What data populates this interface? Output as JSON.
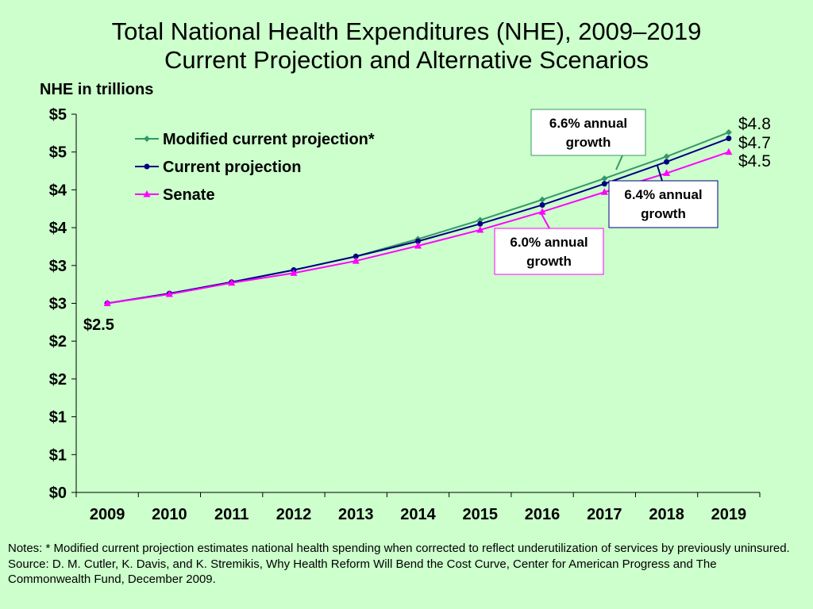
{
  "title_line1": "Total National Health Expenditures (NHE), 2009–2019",
  "title_line2": "Current Projection and Alternative Scenarios",
  "notes_line": "Notes: * Modified current projection estimates national health spending when corrected to reflect underutilization of services by previously uninsured.",
  "source_line": "Source: D. M. Cutler, K. Davis, and K. Stremikis, Why Health Reform Will Bend the Cost Curve, Center for American Progress and The Commonwealth Fund, December 2009.",
  "chart_data": {
    "type": "line",
    "ylabel": "NHE in trillions",
    "ylim": [
      0,
      5
    ],
    "yticks": [
      0,
      0.5,
      1,
      1.5,
      2,
      2.5,
      3,
      3.5,
      4,
      4.5,
      5
    ],
    "ytick_labels": [
      "$0",
      "$1",
      "$1",
      "$2",
      "$2",
      "$3",
      "$3",
      "$4",
      "$4",
      "$5",
      "$5"
    ],
    "x": [
      "2009",
      "2010",
      "2011",
      "2012",
      "2013",
      "2014",
      "2015",
      "2016",
      "2017",
      "2018",
      "2019"
    ],
    "legend_position": "top-left",
    "series": [
      {
        "name": "Modified current projection*",
        "color": "#339966",
        "marker": "diamond",
        "values": [
          2.5,
          2.63,
          2.78,
          2.94,
          3.12,
          3.35,
          3.6,
          3.87,
          4.15,
          4.44,
          4.76
        ]
      },
      {
        "name": "Current projection",
        "color": "#000080",
        "marker": "circle",
        "values": [
          2.5,
          2.63,
          2.78,
          2.94,
          3.12,
          3.32,
          3.55,
          3.8,
          4.08,
          4.37,
          4.68
        ]
      },
      {
        "name": "Senate",
        "color": "#ff00ff",
        "marker": "triangle",
        "values": [
          2.5,
          2.62,
          2.77,
          2.9,
          3.06,
          3.26,
          3.47,
          3.71,
          3.97,
          4.22,
          4.5
        ]
      }
    ],
    "annotations": {
      "start_value": "$2.5",
      "end_values": [
        "$4.8",
        "$4.7",
        "$4.5"
      ],
      "callouts": [
        {
          "label": "6.6% annual growth",
          "series": 0,
          "color": "#339966"
        },
        {
          "label": "6.4% annual growth",
          "series": 1,
          "color": "#000080"
        },
        {
          "label": "6.0% annual growth",
          "series": 2,
          "color": "#ff00ff"
        }
      ]
    }
  }
}
